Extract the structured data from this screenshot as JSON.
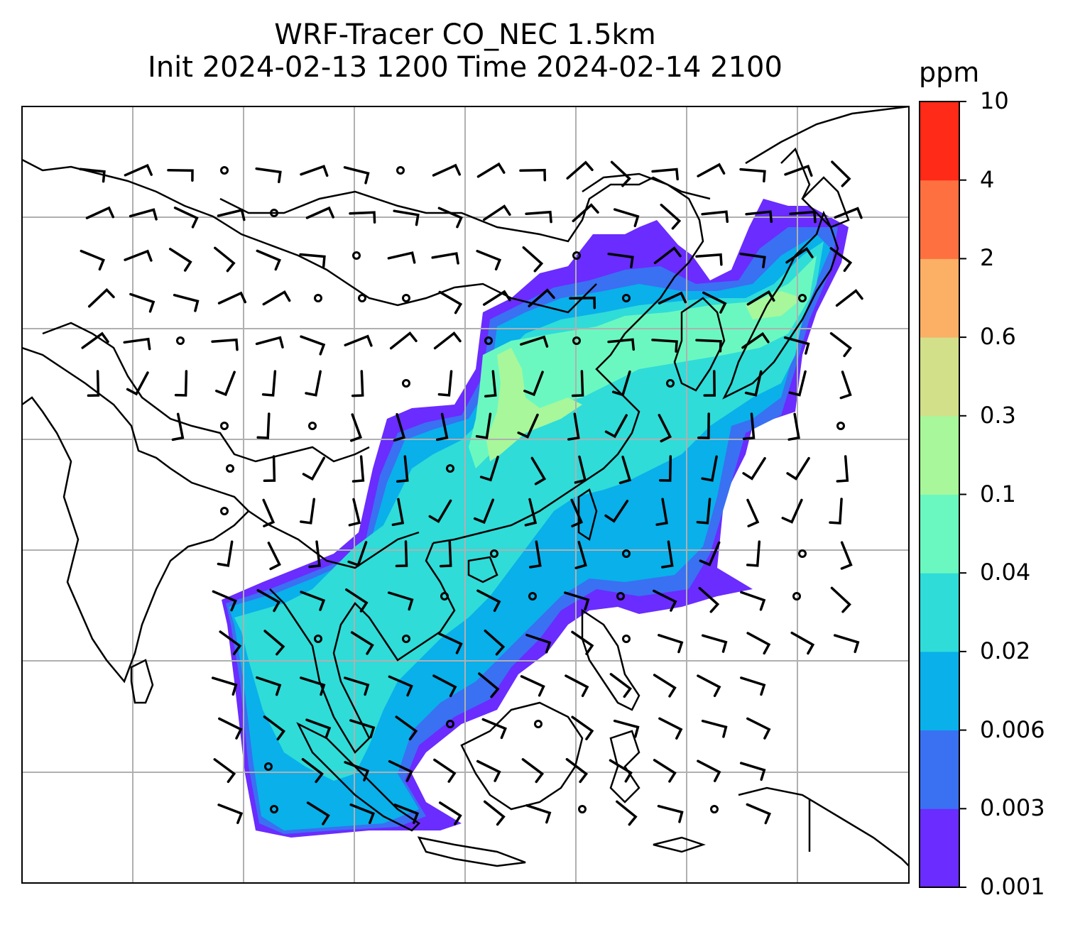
{
  "title": {
    "line1": "WRF-Tracer CO_NEC 1.5km",
    "line2": "Init 2024-02-13 1200 Time 2024-02-14 2100"
  },
  "colorbar": {
    "units": "ppm",
    "levels": [
      "0.001",
      "0.003",
      "0.006",
      "0.02",
      "0.04",
      "0.1",
      "0.3",
      "0.6",
      "2",
      "4",
      "10"
    ],
    "colors": [
      "#6a2cff",
      "#3a70f2",
      "#09b0ea",
      "#2fdcd8",
      "#6bf8c0",
      "#a8f79a",
      "#d2e08a",
      "#fbb065",
      "#ff7040",
      "#ff2a18"
    ]
  },
  "map": {
    "graticule_color": "#b0b0b0",
    "coastline_color": "#000000",
    "wind_barb_color": "#000000"
  }
}
